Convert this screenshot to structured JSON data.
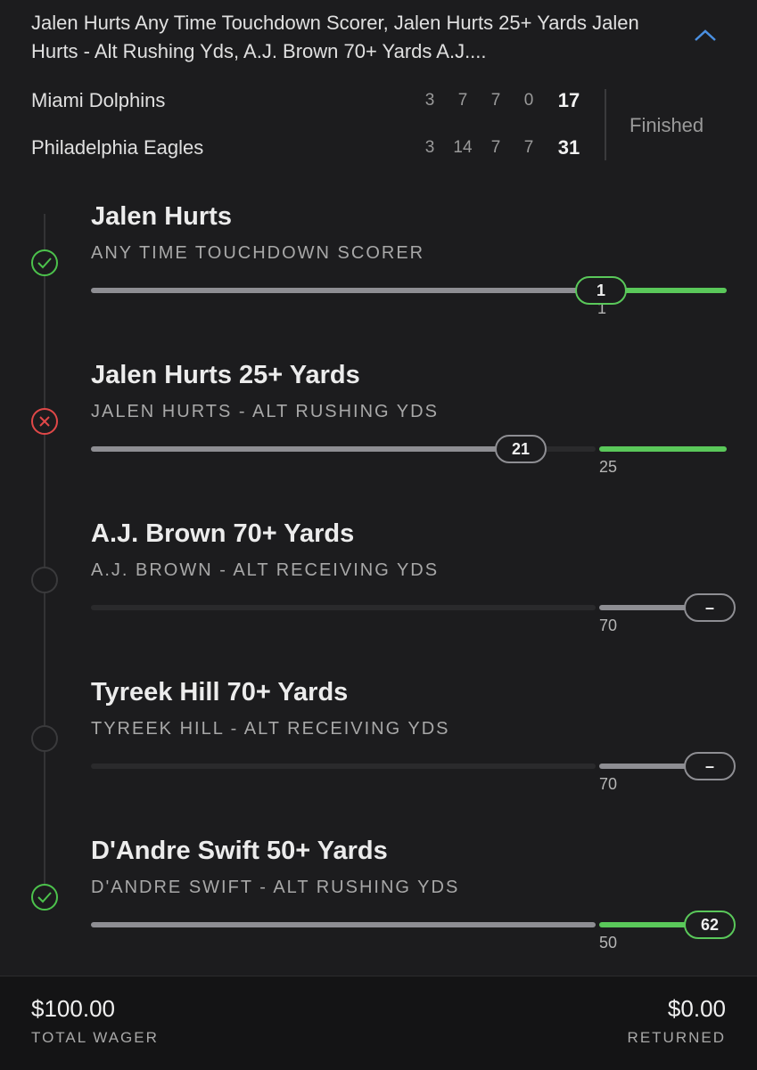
{
  "header": {
    "title": "Jalen Hurts Any Time Touchdown Scorer, Jalen Hurts 25+ Yards Jalen Hurts - Alt Rushing Yds, A.J. Brown 70+ Yards A.J...."
  },
  "scoreboard": {
    "teams": [
      {
        "name": "Miami Dolphins",
        "quarters": [
          "3",
          "7",
          "7",
          "0"
        ],
        "total": "17"
      },
      {
        "name": "Philadelphia Eagles",
        "quarters": [
          "3",
          "14",
          "7",
          "7"
        ],
        "total": "31"
      }
    ],
    "status": "Finished"
  },
  "legs": [
    {
      "title": "Jalen Hurts",
      "subtitle": "ANY TIME TOUCHDOWN SCORER",
      "current": "1",
      "target": "1"
    },
    {
      "title": "Jalen Hurts 25+ Yards",
      "subtitle": "JALEN HURTS - ALT RUSHING YDS",
      "current": "21",
      "target": "25"
    },
    {
      "title": "A.J. Brown 70+ Yards",
      "subtitle": "A.J. BROWN - ALT RECEIVING YDS",
      "current": "–",
      "target": "70"
    },
    {
      "title": "Tyreek Hill 70+ Yards",
      "subtitle": "TYREEK HILL - ALT RECEIVING YDS",
      "current": "–",
      "target": "70"
    },
    {
      "title": "D'Andre Swift 50+ Yards",
      "subtitle": "D'ANDRE SWIFT - ALT RUSHING YDS",
      "current": "62",
      "target": "50"
    }
  ],
  "footer": {
    "wager": "$100.00",
    "wager_label": "TOTAL WAGER",
    "returned": "$0.00",
    "returned_label": "RETURNED"
  }
}
